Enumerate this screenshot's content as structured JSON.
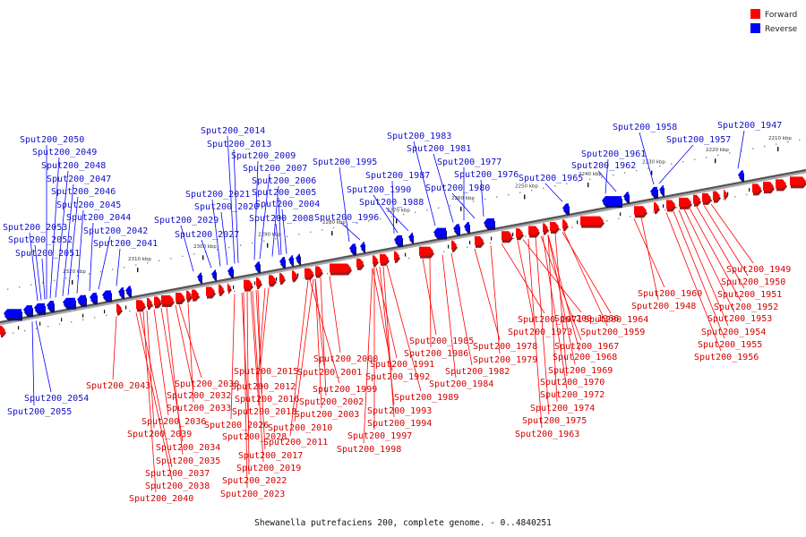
{
  "caption": "Shewanella putrefaciens 200, complete genome. - 0..4840251",
  "legend": [
    {
      "label": "Forward",
      "color": "#ff0000"
    },
    {
      "label": "Reverse",
      "color": "#0000ff"
    }
  ],
  "scale": {
    "unit": "kbp",
    "start_kbp": 2210,
    "end_kbp": 2320
  },
  "kbp_ticks": [
    "2210 kbp",
    "2220 kbp",
    "2230 kbp",
    "2240 kbp",
    "2250 kbp",
    "2260 kbp",
    "2270 kbp",
    "2280 kbp",
    "2290 kbp",
    "2300 kbp",
    "2310 kbp",
    "2320 kbp"
  ],
  "reverse_genes": [
    "Sput200_2055",
    "Sput200_2054",
    "Sput200_2053",
    "Sput200_2052",
    "Sput200_2051",
    "Sput200_2050",
    "Sput200_2049",
    "Sput200_2048",
    "Sput200_2047",
    "Sput200_2046",
    "Sput200_2045",
    "Sput200_2044",
    "Sput200_2042",
    "Sput200_2041",
    "Sput200_2029",
    "Sput200_2027",
    "Sput200_2021",
    "Sput200_2020",
    "Sput200_2014",
    "Sput200_2013",
    "Sput200_2009",
    "Sput200_2007",
    "Sput200_2006",
    "Sput200_2005",
    "Sput200_2004",
    "Sput200_2008",
    "Sput200_1995",
    "Sput200_1996",
    "Sput200_1987",
    "Sput200_1990",
    "Sput200_1988",
    "Sput200_1983",
    "Sput200_1981",
    "Sput200_1977",
    "Sput200_1976",
    "Sput200_1980",
    "Sput200_1965",
    "Sput200_1961",
    "Sput200_1962",
    "Sput200_1958",
    "Sput200_1957",
    "Sput200_1947"
  ],
  "forward_genes": [
    "Sput200_2043",
    "Sput200_2030",
    "Sput200_2032",
    "Sput200_2033",
    "Sput200_2036",
    "Sput200_2039",
    "Sput200_2034",
    "Sput200_2035",
    "Sput200_2037",
    "Sput200_2038",
    "Sput200_2040",
    "Sput200_2015",
    "Sput200_2012",
    "Sput200_2016",
    "Sput200_2018",
    "Sput200_2026",
    "Sput200_2028",
    "Sput200_2017",
    "Sput200_2019",
    "Sput200_2022",
    "Sput200_2023",
    "Sput200_2000",
    "Sput200_2001",
    "Sput200_1999",
    "Sput200_2002",
    "Sput200_2003",
    "Sput200_2010",
    "Sput200_2011",
    "Sput200_1991",
    "Sput200_1992",
    "Sput200_1989",
    "Sput200_1993",
    "Sput200_1994",
    "Sput200_1997",
    "Sput200_1998",
    "Sput200_1985",
    "Sput200_1986",
    "Sput200_1982",
    "Sput200_1984",
    "Sput200_1978",
    "Sput200_1979",
    "Sput200_1971",
    "Sput200_1973",
    "Sput200_1966",
    "Sput200_1967",
    "Sput200_1968",
    "Sput200_1969",
    "Sput200_1970",
    "Sput200_1972",
    "Sput200_1974",
    "Sput200_1975",
    "Sput200_1963",
    "Sput200_1964",
    "Sput200_1959",
    "Sput200_1960",
    "Sput200_1948",
    "Sput200_1949",
    "Sput200_1950",
    "Sput200_1951",
    "Sput200_1952",
    "Sput200_1953",
    "Sput200_1954",
    "Sput200_1955",
    "Sput200_1956"
  ]
}
